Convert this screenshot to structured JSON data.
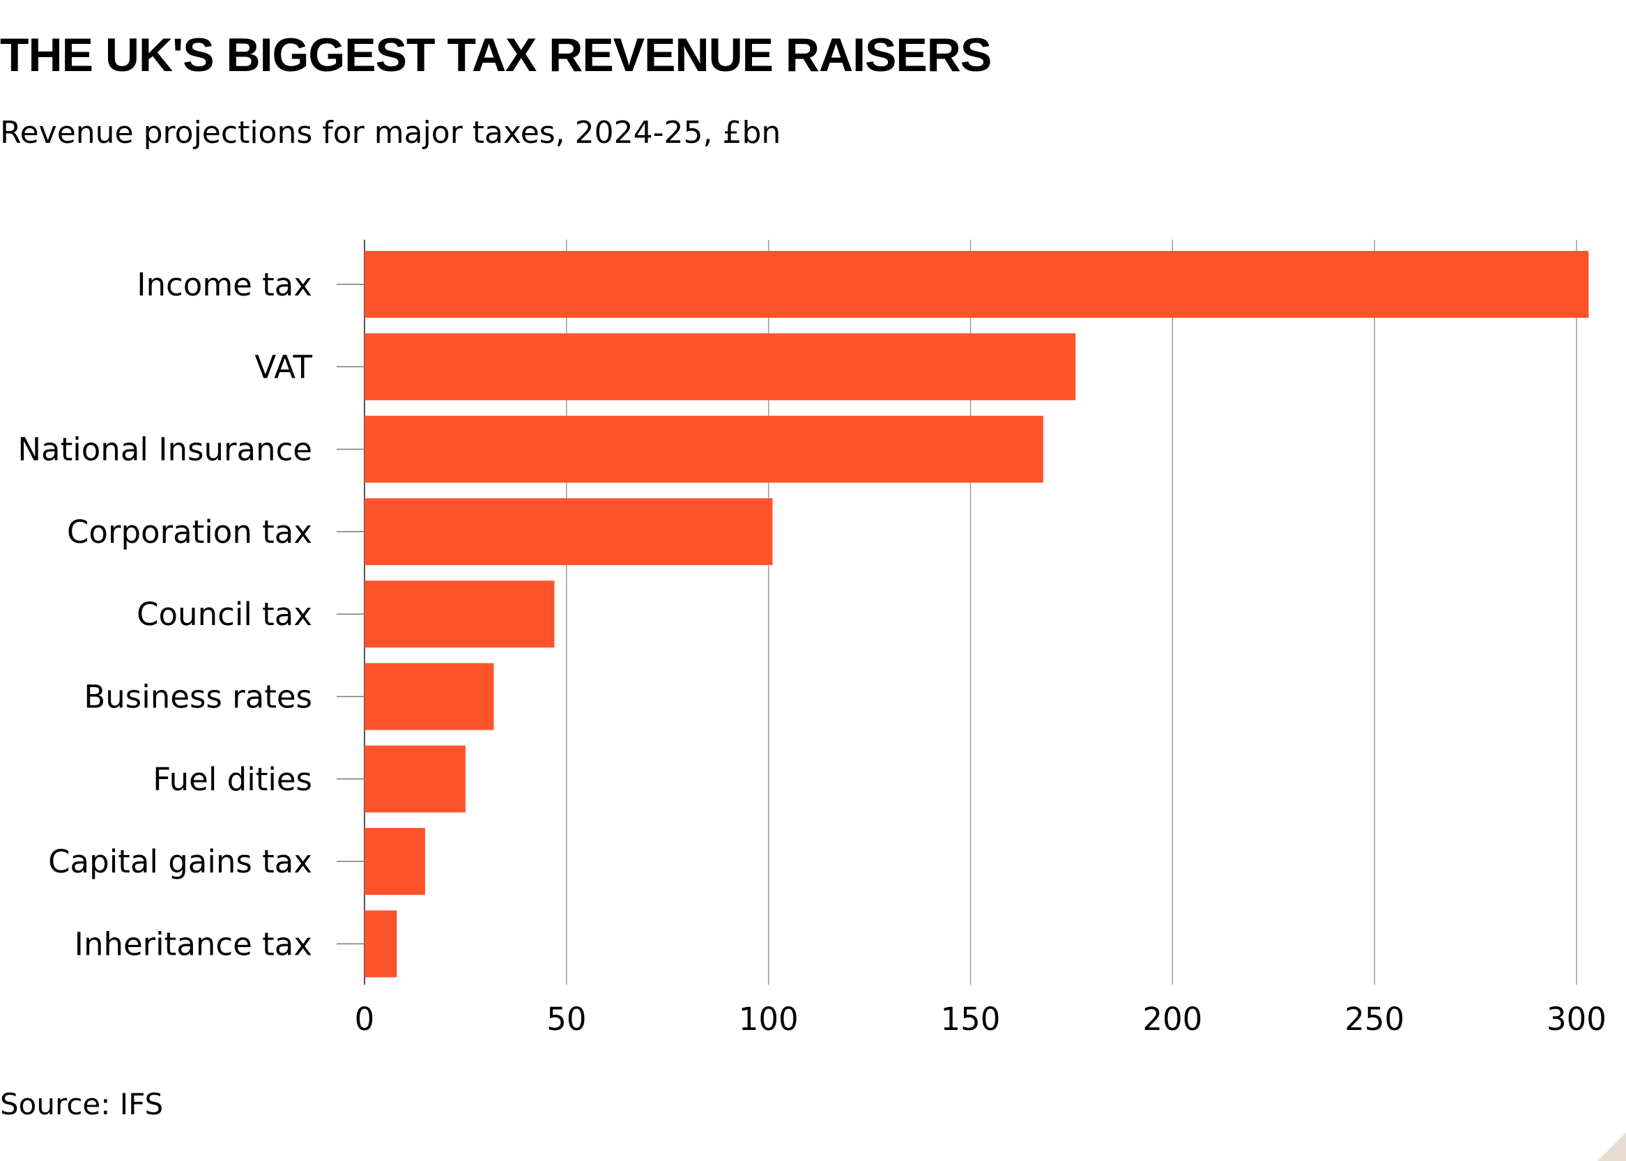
{
  "title": "THE UK'S BIGGEST TAX REVENUE RAISERS",
  "subtitle": "Revenue projections for major taxes, 2024-25, £bn",
  "source": "Source: IFS",
  "chart_data": {
    "type": "bar",
    "orientation": "horizontal",
    "title": "THE UK'S BIGGEST TAX REVENUE RAISERS",
    "subtitle": "Revenue projections for major taxes, 2024-25, £bn",
    "categories": [
      "Income tax",
      "VAT",
      "National Insurance",
      "Corporation tax",
      "Council tax",
      "Business rates",
      "Fuel dities",
      "Capital gains tax",
      "Inheritance tax"
    ],
    "values": [
      303,
      176,
      168,
      101,
      47,
      32,
      25,
      15,
      8
    ],
    "xlim": [
      0,
      300
    ],
    "xticks": [
      0,
      50,
      100,
      150,
      200,
      250,
      300
    ],
    "grid": "vertical",
    "bar_color": "#ff532b",
    "xlabel": "",
    "ylabel": ""
  }
}
